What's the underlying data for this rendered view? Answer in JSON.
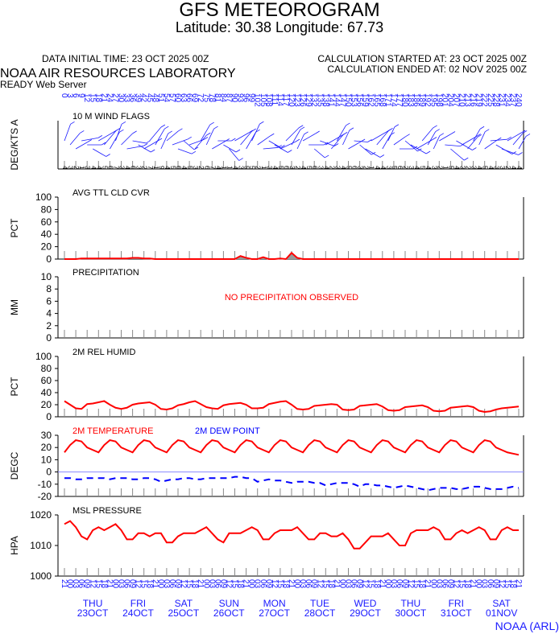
{
  "header": {
    "title": "GFS METEOROGRAM",
    "location": "Latitude: 30.38 Longitude:  67.73",
    "data_initial_time": "DATA INITIAL TIME: 23 OCT 2025 00Z",
    "calc_started": "CALCULATION STARTED AT: 23 OCT 2025 00Z",
    "calc_ended": "CALCULATION ENDED AT: 02 NOV 2025 00Z",
    "lab": "NOAA AIR RESOURCES LABORATORY",
    "server": "READY Web Server",
    "footer": "NOAA (ARL)"
  },
  "colors": {
    "red": "#ff0000",
    "blue": "#0000ff",
    "label_blue": "#1a1aff",
    "axis": "#000000"
  },
  "chart_data": [
    {
      "type": "wind_barbs",
      "title": "10 M  WIND FLAGS",
      "ylabel": "DEG/KTS  A",
      "time_step_hours": 3,
      "wind_dir_deg": [
        20,
        40,
        60,
        80,
        90,
        120,
        60,
        40,
        30,
        20,
        45,
        80,
        100,
        120,
        60,
        40,
        30,
        25,
        50,
        70,
        110,
        130,
        70,
        40,
        30,
        25,
        60,
        90,
        120,
        140,
        60,
        40,
        30,
        25,
        55,
        85,
        120,
        120,
        65,
        45,
        30,
        25,
        60,
        90,
        130,
        110,
        60,
        40,
        30,
        25,
        60,
        95,
        130,
        120,
        60,
        40,
        30,
        25,
        55,
        90,
        130,
        120,
        60,
        40,
        30,
        25,
        60,
        95,
        130,
        120,
        60,
        40,
        30,
        25,
        55,
        85,
        120,
        110,
        60,
        40,
        30
      ],
      "wind_speed_kts": [
        8,
        5,
        3,
        7,
        4,
        5,
        6,
        9,
        10,
        8,
        6,
        7,
        3,
        4,
        6,
        8,
        9,
        7,
        5,
        6,
        4,
        3,
        5,
        8,
        9,
        8,
        5,
        3,
        4,
        5,
        6,
        8,
        10,
        9,
        5,
        4,
        3,
        5,
        7,
        9,
        8,
        6,
        4,
        5,
        3,
        5,
        7,
        9,
        8,
        6,
        4,
        3,
        5,
        7,
        8,
        9,
        6,
        5,
        4,
        3,
        6,
        8,
        9,
        7,
        5,
        4,
        3,
        5,
        8,
        9,
        7,
        5,
        3,
        4,
        5,
        7,
        9,
        8,
        6,
        5,
        4
      ]
    },
    {
      "type": "area",
      "title": "AVG TTL CLD CVR",
      "ylabel": "PCT",
      "ylim": [
        0,
        100
      ],
      "y_ticks": [
        0,
        20,
        40,
        60,
        80,
        100
      ],
      "values": [
        0,
        0,
        0,
        1,
        1,
        1,
        1,
        1,
        1,
        1,
        1,
        1,
        2,
        2,
        1,
        1,
        0,
        0,
        0,
        0,
        0,
        0,
        0,
        0,
        0,
        0,
        0,
        0,
        0,
        0,
        0,
        5,
        2,
        0,
        0,
        3,
        0,
        0,
        1,
        0,
        10,
        2,
        0,
        0,
        0,
        0,
        0,
        0,
        0,
        0,
        0,
        0,
        0,
        0,
        0,
        0,
        0,
        0,
        0,
        0,
        0,
        0,
        0,
        0,
        0,
        0,
        0,
        0,
        0,
        0,
        0,
        0,
        0,
        0,
        0,
        0,
        0,
        0,
        0,
        0,
        0
      ]
    },
    {
      "type": "bar",
      "title": "PRECIPITATION",
      "ylabel": "MM",
      "ylim": [
        0,
        10
      ],
      "y_ticks": [
        0,
        2,
        4,
        6,
        8,
        10
      ],
      "annotation": "NO PRECIPITATION OBSERVED",
      "values": []
    },
    {
      "type": "line",
      "title": "2M REL HUMID",
      "ylabel": "PCT",
      "ylim": [
        0,
        100
      ],
      "y_ticks": [
        0,
        20,
        40,
        60,
        80,
        100
      ],
      "values": [
        26,
        20,
        14,
        13,
        21,
        22,
        24,
        26,
        20,
        15,
        13,
        15,
        20,
        22,
        23,
        24,
        20,
        13,
        12,
        14,
        19,
        21,
        24,
        26,
        21,
        16,
        14,
        13,
        19,
        21,
        22,
        23,
        20,
        14,
        14,
        15,
        21,
        23,
        25,
        26,
        20,
        13,
        12,
        13,
        18,
        19,
        20,
        21,
        20,
        12,
        11,
        12,
        18,
        19,
        20,
        21,
        17,
        11,
        10,
        11,
        16,
        17,
        18,
        19,
        16,
        10,
        9,
        10,
        15,
        16,
        17,
        18,
        16,
        10,
        8,
        9,
        12,
        14,
        15,
        16,
        17
      ]
    },
    {
      "type": "line",
      "title": "2M TEMPERATURE",
      "series2_title": "2M   DEW POINT",
      "ylabel": "DEGC",
      "ylim": [
        -20,
        30
      ],
      "y_ticks": [
        -20,
        -10,
        0,
        10,
        20,
        30
      ],
      "series": [
        {
          "name": "2M TEMPERATURE",
          "color": "#ff0000",
          "dash": false,
          "values": [
            16,
            22,
            26,
            25,
            20,
            18,
            16,
            22,
            26,
            25,
            20,
            18,
            16,
            22,
            26,
            25,
            20,
            18,
            16,
            22,
            26,
            25,
            20,
            18,
            16,
            22,
            26,
            25,
            20,
            18,
            16,
            22,
            26,
            25,
            20,
            18,
            16,
            22,
            26,
            25,
            20,
            18,
            16,
            22,
            26,
            25,
            20,
            18,
            16,
            22,
            26,
            25,
            20,
            18,
            16,
            22,
            26,
            25,
            20,
            18,
            16,
            22,
            26,
            25,
            20,
            18,
            16,
            22,
            26,
            25,
            20,
            18,
            16,
            22,
            26,
            25,
            20,
            18,
            16,
            15,
            14
          ]
        },
        {
          "name": "2M   DEW POINT",
          "color": "#0000ff",
          "dash": true,
          "values": [
            -5,
            -5,
            -6,
            -6,
            -5,
            -5,
            -5,
            -5,
            -6,
            -5,
            -5,
            -5,
            -6,
            -6,
            -5,
            -5,
            -6,
            -8,
            -7,
            -6,
            -6,
            -5,
            -5,
            -6,
            -6,
            -5,
            -5,
            -5,
            -5,
            -5,
            -4,
            -4,
            -5,
            -5,
            -8,
            -7,
            -6,
            -7,
            -7,
            -8,
            -9,
            -8,
            -8,
            -8,
            -9,
            -9,
            -11,
            -10,
            -9,
            -9,
            -9,
            -10,
            -12,
            -10,
            -10,
            -11,
            -11,
            -12,
            -13,
            -12,
            -11,
            -12,
            -13,
            -14,
            -15,
            -14,
            -13,
            -13,
            -13,
            -14,
            -14,
            -13,
            -12,
            -12,
            -13,
            -14,
            -14,
            -14,
            -13,
            -12,
            -13
          ]
        }
      ]
    },
    {
      "type": "line",
      "title": "MSL PRESSURE",
      "ylabel": "HPA",
      "ylim": [
        1000,
        1020
      ],
      "y_ticks": [
        1000,
        1010,
        1020
      ],
      "y_tick_labels": [
        "1000",
        "1010",
        "1020"
      ],
      "values": [
        1017,
        1018,
        1016,
        1013,
        1012,
        1015,
        1016,
        1015,
        1016,
        1017,
        1015,
        1012,
        1012,
        1014,
        1014,
        1013,
        1014,
        1014,
        1011,
        1011,
        1013,
        1014,
        1014,
        1014,
        1015,
        1016,
        1014,
        1012,
        1011,
        1014,
        1014,
        1014,
        1015,
        1016,
        1015,
        1012,
        1012,
        1014,
        1015,
        1015,
        1015,
        1016,
        1014,
        1012,
        1012,
        1014,
        1014,
        1013,
        1013,
        1014,
        1012,
        1009,
        1009,
        1011,
        1013,
        1013,
        1013,
        1014,
        1012,
        1010,
        1010,
        1014,
        1015,
        1015,
        1015,
        1016,
        1015,
        1012,
        1012,
        1014,
        1015,
        1014,
        1015,
        1016,
        1015,
        1012,
        1012,
        1015,
        1016,
        1015,
        1015
      ]
    }
  ],
  "axis": {
    "hours": [
      "0",
      "3",
      "6",
      "9",
      "12",
      "15",
      "18",
      "21",
      "24",
      "27",
      "30",
      "33",
      "36",
      "39",
      "42",
      "45",
      "48",
      "51",
      "54",
      "57",
      "60",
      "63",
      "66",
      "69",
      "72",
      "75",
      "78",
      "81",
      "84",
      "87",
      "90",
      "93",
      "96",
      "99",
      "102",
      "105",
      "108",
      "111",
      "114",
      "117",
      "120",
      "123",
      "126",
      "129",
      "132",
      "135",
      "138",
      "141",
      "144",
      "147",
      "150",
      "153",
      "156",
      "159",
      "162",
      "165",
      "168",
      "171",
      "174",
      "177",
      "180",
      "183",
      "186",
      "189",
      "192",
      "195",
      "198",
      "201",
      "204",
      "207",
      "210",
      "213",
      "216",
      "219",
      "222",
      "225",
      "228",
      "231",
      "234",
      "237",
      "240"
    ],
    "hour_labels_dense": "0 3 6 9 12 15 18 21 24 27 30 33 36 39 42 45 48 51 54 57 60 63 66 69 72 75 78 81 84 87 90 93 96 99 102 105 108 111 114 117 120 123 126 129 132 135 138 141 144 147 150 153 156 159 162 165 168 171 174 177 180 183 186 189 192 195 198 201 204 207 210 213 216 219 222 225 228 231 234 237 240",
    "wind_labels_dense": "4 3 2 1 3 4 4 5 6 7 3 4 6 3 2 7 1 9 4 5 6 4 5 3 2 6 7 4 1 1 4 3 5 5 2 1 3 4 5 6 3 2 4 5 6 3 4 2 3 4 5 6 3 2 1 4 4 3 5 6 2 3 4 5 4 3 2 1 5 4 3 2 3 4 5 4 3 3 2 4 4",
    "utc_labels_dense": "21 00 03 06 09 12 15 18 21 00 03 06 09 12 15 18 21 00 03 06 09 12 15 18 21 00 03 06 09 12 15 18 21 00 03 06 09 12 15 18 21 00 03 06 09 12 15 18 21 00 03 06 09 12 15 18 21 00 03 06 09 12 15 18 21 00 03 06 09 12 15 18 21 00 03 06 09 12 15 18 21",
    "days": [
      {
        "dow": "THU",
        "date": "23OCT"
      },
      {
        "dow": "FRI",
        "date": "24OCT"
      },
      {
        "dow": "SAT",
        "date": "25OCT"
      },
      {
        "dow": "SUN",
        "date": "26OCT"
      },
      {
        "dow": "MON",
        "date": "27OCT"
      },
      {
        "dow": "TUE",
        "date": "28OCT"
      },
      {
        "dow": "WED",
        "date": "29OCT"
      },
      {
        "dow": "THU",
        "date": "30OCT"
      },
      {
        "dow": "FRI",
        "date": "31OCT"
      },
      {
        "dow": "SAT",
        "date": "01NOV"
      }
    ]
  }
}
